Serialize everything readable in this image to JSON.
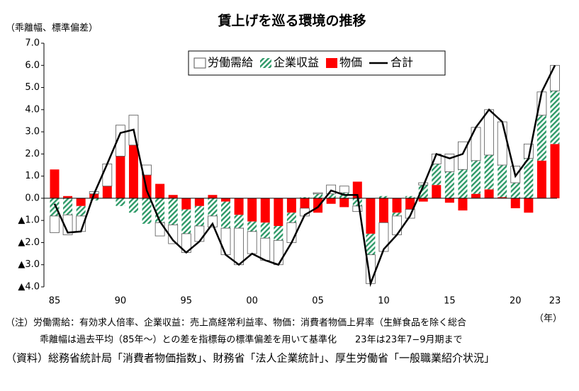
{
  "chart_data": {
    "type": "bar",
    "stacked": true,
    "title": "賃上げを巡る環境の推移",
    "y_label": "（乖離幅、標準偏差）",
    "x_unit": "（年）",
    "notes": [
      "（注）労働需給：有効求人倍率、企業収益：売上高経常利益率、物価：消費者物価上昇率（生鮮食品を除く総合",
      "乖離幅は過去平均（85年～）との差を指標毎の標準偏差を用いて基準化　　23年は23年7−9月期まで",
      "（資料）総務省統計局「消費者物価指数」、財務省「法人企業統計」、厚生労働省「一般職業紹介状況」"
    ],
    "categories": [
      "85",
      null,
      null,
      null,
      null,
      "90",
      null,
      null,
      null,
      null,
      "95",
      null,
      null,
      null,
      null,
      "00",
      null,
      null,
      null,
      null,
      "05",
      null,
      null,
      null,
      null,
      "10",
      null,
      null,
      null,
      null,
      "15",
      null,
      null,
      null,
      null,
      "20",
      null,
      null,
      "23"
    ],
    "ylim": [
      -4,
      7
    ],
    "yticks": [
      {
        "value": 7,
        "label": "7.0"
      },
      {
        "value": 6,
        "label": "6.0"
      },
      {
        "value": 5,
        "label": "5.0"
      },
      {
        "value": 4,
        "label": "4.0"
      },
      {
        "value": 3,
        "label": "3.0"
      },
      {
        "value": 2,
        "label": "2.0"
      },
      {
        "value": 1,
        "label": "1.0"
      },
      {
        "value": 0,
        "label": "0.0"
      },
      {
        "value": -1,
        "label": "▲1.0"
      },
      {
        "value": -2,
        "label": "▲2.0"
      },
      {
        "value": -3,
        "label": "▲3.0"
      },
      {
        "value": -4,
        "label": "▲4.0"
      }
    ],
    "grid": false,
    "series": [
      {
        "name": "労働需給",
        "color": "#ffffff",
        "fill": "plain",
        "values": [
          -0.75,
          -0.9,
          -0.7,
          0.1,
          1.0,
          1.4,
          1.35,
          0.45,
          -0.6,
          -0.85,
          -0.85,
          -0.7,
          -0.5,
          -1.2,
          -1.65,
          -1.0,
          -1.0,
          -1.1,
          -0.9,
          -0.35,
          0.05,
          0.4,
          0.3,
          -0.25,
          -1.3,
          -1.3,
          -0.85,
          -0.4,
          0.1,
          0.45,
          0.8,
          1.25,
          1.5,
          2.05,
          1.95,
          0.75,
          0.65,
          1.05,
          1.15
        ]
      },
      {
        "name": "企業収益",
        "color": "#2e9a68",
        "fill": "hatch",
        "values": [
          -0.8,
          -0.75,
          -0.45,
          -0.1,
          0,
          -0.35,
          -0.65,
          -1.15,
          -1.1,
          -1.2,
          -1.1,
          -0.9,
          -0.8,
          -1.2,
          -0.6,
          -0.45,
          -0.7,
          -0.65,
          -0.45,
          0.05,
          0.2,
          0.2,
          0.25,
          -0.35,
          -0.95,
          0.1,
          -0.15,
          0.1,
          0.6,
          0.95,
          1.2,
          1.3,
          1.5,
          1.55,
          1.45,
          0.7,
          1.8,
          2.05,
          2.4
        ]
      },
      {
        "name": "物価",
        "color": "#ff0000",
        "fill": "plain",
        "values": [
          1.3,
          0.1,
          -0.35,
          0.2,
          0.55,
          1.9,
          2.4,
          1.05,
          0.65,
          0.15,
          -0.5,
          -0.35,
          0.15,
          -0.15,
          -0.75,
          -1.05,
          -1.1,
          -1.25,
          -0.65,
          -0.45,
          -0.65,
          -0.25,
          -0.4,
          0.75,
          -1.6,
          -1.1,
          -0.65,
          -0.5,
          -0.15,
          0.6,
          -0.2,
          -0.55,
          0.2,
          0.4,
          0.05,
          -0.45,
          -0.65,
          1.7,
          2.45
        ]
      },
      {
        "name": "合計",
        "color": "#000000",
        "type": "line",
        "values": [
          -0.25,
          -1.55,
          -1.5,
          0.2,
          1.55,
          2.95,
          3.1,
          0.35,
          -1.05,
          -1.9,
          -2.45,
          -1.95,
          -1.15,
          -2.55,
          -3.0,
          -2.5,
          -2.8,
          -3.0,
          -2.0,
          -0.75,
          -0.4,
          0.35,
          0.15,
          0.15,
          -3.85,
          -2.3,
          -1.65,
          -0.8,
          0.55,
          2.0,
          1.8,
          2.0,
          3.2,
          4.0,
          3.45,
          1.0,
          1.8,
          4.8,
          6.0
        ]
      }
    ],
    "legend": "top"
  }
}
